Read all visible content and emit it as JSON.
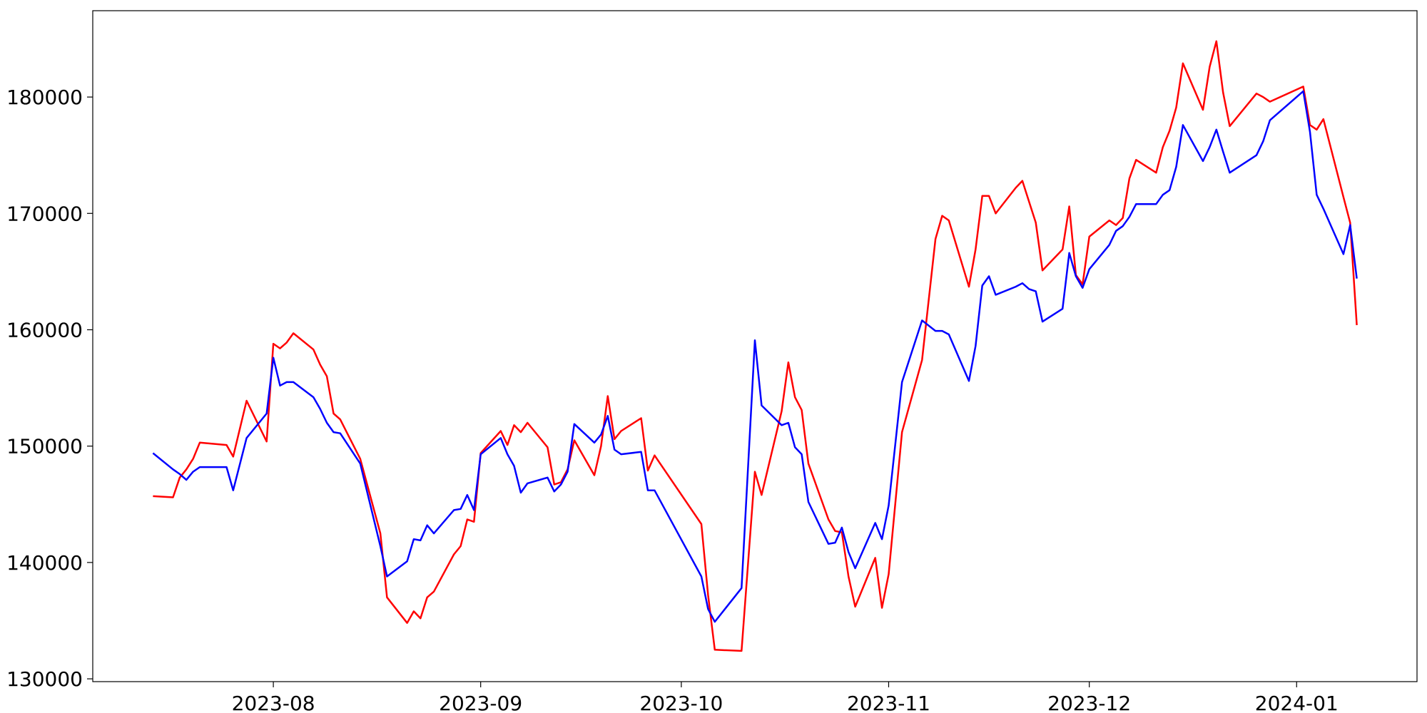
{
  "chart_data": {
    "type": "line",
    "x": [
      -18,
      -15,
      -14,
      -13,
      -12,
      -11,
      -7,
      -6,
      -4,
      -1,
      0,
      1,
      2,
      3,
      6,
      7,
      8,
      9,
      10,
      13,
      16,
      17,
      20,
      21,
      22,
      23,
      24,
      27,
      28,
      29,
      30,
      31,
      34,
      35,
      36,
      37,
      38,
      41,
      42,
      43,
      44,
      45,
      48,
      49,
      50,
      51,
      52,
      55,
      56,
      57,
      64,
      65,
      66,
      70,
      72,
      73,
      76,
      77,
      78,
      79,
      80,
      83,
      84,
      85,
      86,
      87,
      90,
      91,
      92,
      94,
      97,
      99,
      100,
      101,
      104,
      105,
      106,
      107,
      108,
      111,
      112,
      113,
      114,
      115,
      118,
      119,
      120,
      121,
      122,
      125,
      126,
      127,
      128,
      129,
      132,
      133,
      134,
      135,
      136,
      139,
      140,
      141,
      142,
      143,
      147,
      148,
      149,
      154,
      155,
      156,
      157,
      160,
      161,
      162
    ],
    "series": [
      {
        "color": "#ff0000",
        "values": [
          145700,
          145600,
          147300,
          148000,
          148900,
          150300,
          150100,
          149100,
          153900,
          150400,
          158800,
          158400,
          158900,
          159700,
          158300,
          157000,
          156000,
          152800,
          152300,
          148900,
          142500,
          137000,
          134800,
          135800,
          135200,
          137000,
          137500,
          140700,
          141400,
          143700,
          143500,
          149400,
          151300,
          150100,
          151800,
          151200,
          152000,
          149900,
          146700,
          146900,
          148000,
          150500,
          147500,
          150000,
          154300,
          150600,
          151300,
          152400,
          147900,
          149200,
          143300,
          137200,
          132500,
          132400,
          147800,
          145800,
          153000,
          157200,
          154200,
          153100,
          148500,
          143700,
          142700,
          142600,
          138800,
          136200,
          140400,
          136100,
          139000,
          151200,
          157400,
          167800,
          169800,
          169400,
          163700,
          166900,
          171500,
          171500,
          170000,
          172200,
          172800,
          171000,
          169200,
          165100,
          166900,
          170600,
          164700,
          163900,
          168000,
          169400,
          169000,
          169600,
          173000,
          174600,
          173500,
          175700,
          177100,
          179100,
          182900,
          178900,
          182600,
          184800,
          180400,
          177500,
          180300,
          180000,
          179600,
          180900,
          177600,
          177200,
          178100,
          171400,
          169200,
          160400
        ]
      },
      {
        "color": "#0000ff",
        "values": [
          149400,
          148000,
          147600,
          147100,
          147800,
          148200,
          148200,
          146200,
          150700,
          152800,
          157600,
          155200,
          155500,
          155500,
          154200,
          153200,
          152000,
          151200,
          151100,
          148500,
          141400,
          138800,
          140100,
          142000,
          141900,
          143200,
          142500,
          144500,
          144600,
          145800,
          144500,
          149300,
          150700,
          149300,
          148300,
          146000,
          146800,
          147300,
          146100,
          146700,
          147800,
          151900,
          150300,
          151000,
          152600,
          149700,
          149300,
          149500,
          146200,
          146200,
          138800,
          136000,
          134900,
          137800,
          159100,
          153500,
          151800,
          152000,
          149900,
          149300,
          145200,
          141600,
          141700,
          143000,
          140900,
          139500,
          143400,
          142000,
          144900,
          155500,
          160800,
          159900,
          159900,
          159600,
          155600,
          158600,
          163800,
          164600,
          163000,
          163700,
          164000,
          163500,
          163300,
          160700,
          161800,
          166600,
          164600,
          163600,
          165200,
          167300,
          168500,
          168900,
          169700,
          170800,
          170800,
          171600,
          172000,
          174000,
          177600,
          174500,
          175700,
          177200,
          175300,
          173500,
          175000,
          176200,
          178000,
          180500,
          177000,
          171600,
          170400,
          166500,
          169000,
          164400
        ]
      }
    ],
    "xlim": [
      -27,
      171
    ],
    "xticks": [
      {
        "value": 0,
        "label": "2023-08"
      },
      {
        "value": 31,
        "label": "2023-09"
      },
      {
        "value": 61,
        "label": "2023-10"
      },
      {
        "value": 92,
        "label": "2023-11"
      },
      {
        "value": 122,
        "label": "2023-12"
      },
      {
        "value": 153,
        "label": "2024-01"
      }
    ],
    "ylim": [
      129760,
      187420
    ],
    "yticks": [
      130000,
      140000,
      150000,
      160000,
      170000,
      180000
    ]
  }
}
